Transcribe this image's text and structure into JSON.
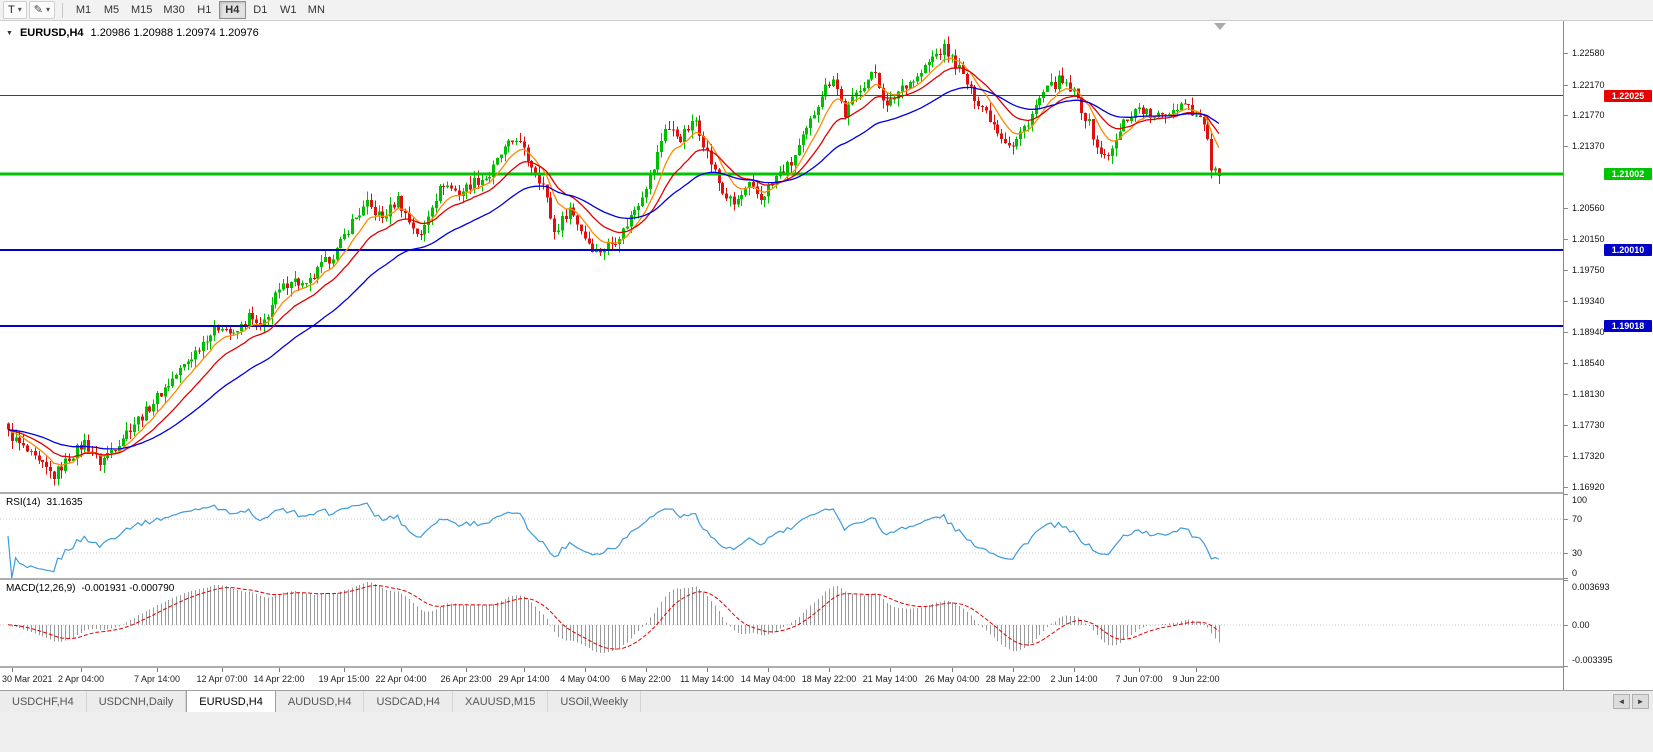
{
  "toolbar": {
    "buttons": [
      {
        "label": "T"
      }
    ],
    "timeframes": [
      "M1",
      "M5",
      "M15",
      "M30",
      "H1",
      "H4",
      "D1",
      "W1",
      "MN"
    ],
    "active_timeframe": "H4"
  },
  "icons": {
    "dropdown": "▾",
    "pencil": "✎",
    "collapse": "▼",
    "tab_scroll_left": "◄",
    "tab_scroll_right": "►"
  },
  "chart_header": {
    "symbol_period": "EURUSD,H4",
    "ohlc": "1.20986 1.20988 1.20974 1.20976"
  },
  "price_axis": {
    "top_price": 1.23,
    "bottom_price": 1.1685,
    "labels": [
      "1.22580",
      "1.22170",
      "1.21770",
      "1.21370",
      "1.20560",
      "1.20150",
      "1.19750",
      "1.19340",
      "1.18940",
      "1.18540",
      "1.18130",
      "1.17730",
      "1.17320",
      "1.16920"
    ]
  },
  "hlines": [
    {
      "price": 1.22025,
      "label": "1.22025",
      "color": "#E80000",
      "width": 1
    },
    {
      "price": 1.21002,
      "label": "1.21002",
      "color": "#00C400",
      "width": 3
    },
    {
      "price": 1.2001,
      "label": "1.20010",
      "color": "#0000C8",
      "width": 2
    },
    {
      "price": 1.19018,
      "label": "1.19018",
      "color": "#0000C8",
      "width": 2
    }
  ],
  "time_axis": [
    {
      "bar": 1,
      "label": "30 Mar 2021"
    },
    {
      "bar": 19,
      "label": "2 Apr 04:00"
    },
    {
      "bar": 39,
      "label": "7 Apr 14:00"
    },
    {
      "bar": 56,
      "label": "12 Apr 07:00"
    },
    {
      "bar": 71,
      "label": "14 Apr 22:00"
    },
    {
      "bar": 88,
      "label": "19 Apr 15:00"
    },
    {
      "bar": 103,
      "label": "22 Apr 04:00"
    },
    {
      "bar": 120,
      "label": "26 Apr 23:00"
    },
    {
      "bar": 135,
      "label": "29 Apr 14:00"
    },
    {
      "bar": 151,
      "label": "4 May 04:00"
    },
    {
      "bar": 167,
      "label": "6 May 22:00"
    },
    {
      "bar": 183,
      "label": "11 May 14:00"
    },
    {
      "bar": 199,
      "label": "14 May 04:00"
    },
    {
      "bar": 215,
      "label": "18 May 22:00"
    },
    {
      "bar": 231,
      "label": "21 May 14:00"
    },
    {
      "bar": 247,
      "label": "26 May 04:00"
    },
    {
      "bar": 263,
      "label": "28 May 22:00"
    },
    {
      "bar": 279,
      "label": "2 Jun 14:00"
    },
    {
      "bar": 296,
      "label": "7 Jun 07:00"
    },
    {
      "bar": 311,
      "label": "9 Jun 22:00"
    }
  ],
  "indicators": {
    "rsi": {
      "name": "RSI(14)",
      "value": "31.1635",
      "period": 14,
      "axis": [
        "100",
        "70",
        "30",
        "0"
      ],
      "levels": [
        70,
        30
      ]
    },
    "macd": {
      "name": "MACD(12,26,9)",
      "values": "-0.001931 -0.000790",
      "fast": 12,
      "slow": 26,
      "signal": 9,
      "axis_max": "0.003693",
      "axis_zero": "0.00",
      "axis_min": "-0.003395",
      "max": 0.003693,
      "min": -0.003395
    }
  },
  "tabs": {
    "items": [
      "USDCHF,H4",
      "USDCNH,Daily",
      "EURUSD,H4",
      "AUDUSD,H4",
      "USDCAD,H4",
      "XAUUSD,M15",
      "USOil,Weekly"
    ],
    "active": "EURUSD,H4"
  },
  "chart_data": {
    "type": "candlestick",
    "symbol": "EURUSD",
    "timeframe": "H4",
    "bars": 318,
    "last_close": 1.20976,
    "x_range_labels": [
      "30 Mar 2021",
      "9 Jun 22:00"
    ],
    "y_range": [
      1.1685,
      1.23
    ],
    "price_path_anchors": [
      [
        0,
        1.1762
      ],
      [
        4,
        1.1742
      ],
      [
        8,
        1.1722
      ],
      [
        12,
        1.1706
      ],
      [
        16,
        1.173
      ],
      [
        20,
        1.175
      ],
      [
        24,
        1.1724
      ],
      [
        28,
        1.1745
      ],
      [
        32,
        1.177
      ],
      [
        36,
        1.179
      ],
      [
        40,
        1.1815
      ],
      [
        44,
        1.1838
      ],
      [
        48,
        1.1862
      ],
      [
        52,
        1.1888
      ],
      [
        56,
        1.1904
      ],
      [
        59,
        1.1888
      ],
      [
        63,
        1.1914
      ],
      [
        66,
        1.1897
      ],
      [
        70,
        1.194
      ],
      [
        74,
        1.1964
      ],
      [
        78,
        1.1952
      ],
      [
        82,
        1.198
      ],
      [
        86,
        1.2
      ],
      [
        90,
        1.2038
      ],
      [
        94,
        1.206
      ],
      [
        98,
        1.2042
      ],
      [
        102,
        1.2068
      ],
      [
        105,
        1.2038
      ],
      [
        108,
        1.2018
      ],
      [
        111,
        1.2062
      ],
      [
        114,
        1.2088
      ],
      [
        118,
        1.2075
      ],
      [
        122,
        1.209
      ],
      [
        126,
        1.2098
      ],
      [
        129,
        1.2126
      ],
      [
        133,
        1.2148
      ],
      [
        136,
        1.212
      ],
      [
        140,
        1.2086
      ],
      [
        143,
        1.2024
      ],
      [
        147,
        1.2056
      ],
      [
        151,
        1.2018
      ],
      [
        154,
        1.1998
      ],
      [
        158,
        1.201
      ],
      [
        161,
        1.2026
      ],
      [
        165,
        1.2064
      ],
      [
        169,
        1.2108
      ],
      [
        172,
        1.2162
      ],
      [
        176,
        1.2148
      ],
      [
        180,
        1.217
      ],
      [
        183,
        1.2128
      ],
      [
        187,
        1.2076
      ],
      [
        190,
        1.206
      ],
      [
        194,
        1.2084
      ],
      [
        197,
        1.2068
      ],
      [
        201,
        1.2096
      ],
      [
        205,
        1.2114
      ],
      [
        209,
        1.2156
      ],
      [
        213,
        1.2206
      ],
      [
        216,
        1.2228
      ],
      [
        219,
        1.2178
      ],
      [
        223,
        1.2214
      ],
      [
        227,
        1.2233
      ],
      [
        230,
        1.2186
      ],
      [
        234,
        1.2216
      ],
      [
        238,
        1.2226
      ],
      [
        242,
        1.2252
      ],
      [
        245,
        1.2264
      ],
      [
        249,
        1.2238
      ],
      [
        252,
        1.2208
      ],
      [
        256,
        1.2182
      ],
      [
        260,
        1.215
      ],
      [
        263,
        1.2136
      ],
      [
        267,
        1.217
      ],
      [
        271,
        1.2206
      ],
      [
        275,
        1.2222
      ],
      [
        279,
        1.2206
      ],
      [
        283,
        1.2165
      ],
      [
        286,
        1.2123
      ],
      [
        289,
        1.213
      ],
      [
        292,
        1.2168
      ],
      [
        296,
        1.2188
      ],
      [
        300,
        1.2172
      ],
      [
        304,
        1.2182
      ],
      [
        308,
        1.2196
      ],
      [
        311,
        1.2176
      ],
      [
        313,
        1.2168
      ],
      [
        315,
        1.211
      ],
      [
        317,
        1.2098
      ]
    ],
    "ma": [
      {
        "period": 8,
        "color": "#FF8A00"
      },
      {
        "period": 17,
        "color": "#E00000"
      },
      {
        "period": 40,
        "color": "#0000E0"
      }
    ],
    "colors": {
      "up": "#00BE00",
      "down": "#E01010",
      "rsi": "#3E9BDB",
      "macd_bar": "#9A9A9A",
      "macd_signal": "#E00000",
      "background": "#FFFFFF"
    }
  }
}
